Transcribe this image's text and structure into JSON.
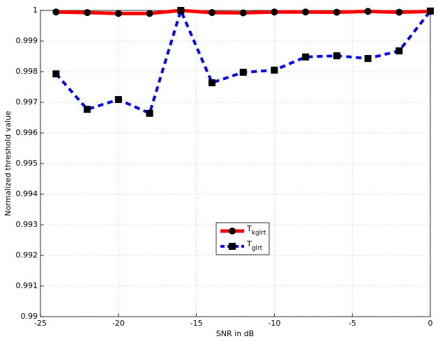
{
  "chart_data": {
    "type": "line",
    "x_label": "SNR in dB",
    "y_label": "Normalized threshold value",
    "x": [
      -24,
      -22,
      -20,
      -18,
      -16,
      -14,
      -12,
      -10,
      -8,
      -6,
      -4,
      -2,
      0
    ],
    "series": [
      {
        "name": "Tkglrt",
        "color": "#ff0000",
        "marker": "circle",
        "dash": false,
        "values": [
          0.99995,
          0.99993,
          0.9999,
          0.9999,
          1.0,
          0.99993,
          0.99992,
          0.99995,
          0.99995,
          0.99994,
          0.99997,
          0.99994,
          0.99997
        ]
      },
      {
        "name": "Tglrt",
        "color": "#0000ff",
        "marker": "square",
        "dash": true,
        "values": [
          0.99793,
          0.99677,
          0.99709,
          0.99664,
          1.0,
          0.99764,
          0.99798,
          0.99805,
          0.99848,
          0.99852,
          0.99843,
          0.99868,
          0.99998
        ]
      }
    ],
    "xlim": [
      -25,
      0
    ],
    "xticks": [
      -25,
      -20,
      -15,
      -10,
      -5,
      0
    ],
    "ylim": [
      0.99,
      1
    ],
    "yticks": [
      0.99,
      0.991,
      0.992,
      0.993,
      0.994,
      0.995,
      0.996,
      0.997,
      0.998,
      0.999,
      1
    ],
    "grid": true,
    "legend": "center"
  }
}
